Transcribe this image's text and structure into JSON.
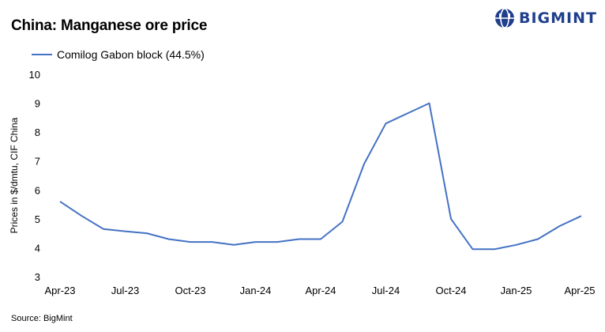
{
  "header": {
    "title": "China: Manganese ore price",
    "brand": "BIGMINT"
  },
  "footer": {
    "source": "Source:  BigMint"
  },
  "colors": {
    "series": "#4472c4",
    "brand": "#1f3e8c"
  },
  "chart_data": {
    "type": "line",
    "title": "China: Manganese ore price",
    "ylabel": "Prices in $/dmtu, CIF China",
    "xlabel": "",
    "ylim": [
      3,
      10
    ],
    "yticks": [
      "3",
      "4",
      "5",
      "6",
      "7",
      "8",
      "9",
      "10"
    ],
    "grid": false,
    "legend_position": "top-left",
    "x_tick_labels": [
      "Apr-23",
      "Jul-23",
      "Oct-23",
      "Jan-24",
      "Apr-24",
      "Jul-24",
      "Oct-24",
      "Jan-25",
      "Apr-25"
    ],
    "series": [
      {
        "name": "Comilog Gabon block (44.5%)",
        "values": [
          5.6,
          5.1,
          4.65,
          4.57,
          4.5,
          4.3,
          4.2,
          4.2,
          4.1,
          4.2,
          4.2,
          4.3,
          4.3,
          4.9,
          6.9,
          8.3,
          8.65,
          9.0,
          5.0,
          3.95,
          3.95,
          4.1,
          4.3,
          4.75,
          5.1
        ]
      }
    ]
  }
}
